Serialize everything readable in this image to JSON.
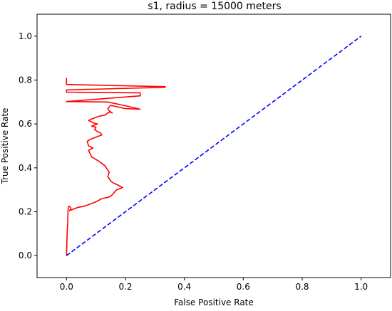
{
  "chart_data": {
    "type": "line",
    "title": "s1, radius = 15000 meters",
    "xlabel": "False Positive Rate",
    "ylabel": "True Positive Rate",
    "xlim": [
      -0.1,
      1.1
    ],
    "ylim": [
      -0.1,
      1.1
    ],
    "xticks": [
      0.0,
      0.2,
      0.4,
      0.6,
      0.8,
      1.0
    ],
    "yticks": [
      0.0,
      0.2,
      0.4,
      0.6,
      0.8,
      1.0
    ],
    "xtick_labels": [
      "0.0",
      "0.2",
      "0.4",
      "0.6",
      "0.8",
      "1.0"
    ],
    "ytick_labels": [
      "0.0",
      "0.2",
      "0.4",
      "0.6",
      "0.8",
      "1.0"
    ],
    "grid": false,
    "series": [
      {
        "color": "#ff0000",
        "style": "solid",
        "x": [
          0.0,
          0.002,
          0.004,
          0.005,
          0.006,
          0.01,
          0.015,
          0.01,
          0.02,
          0.04,
          0.06,
          0.08,
          0.1,
          0.12,
          0.14,
          0.15,
          0.16,
          0.17,
          0.19,
          0.17,
          0.16,
          0.15,
          0.14,
          0.145,
          0.14,
          0.13,
          0.12,
          0.11,
          0.085,
          0.075,
          0.09,
          0.075,
          0.07,
          0.08,
          0.09,
          0.1,
          0.11,
          0.12,
          0.115,
          0.105,
          0.095,
          0.1,
          0.085,
          0.105,
          0.09,
          0.085,
          0.075,
          0.08,
          0.09,
          0.1,
          0.11,
          0.13,
          0.14,
          0.15,
          0.155,
          0.145,
          0.14,
          0.15,
          0.2,
          0.25,
          0.21,
          0.14,
          0.0,
          0.25,
          0.25,
          0.0,
          0.0,
          0.335,
          0.335,
          0.0,
          0.0
        ],
        "y": [
          0.0,
          0.1,
          0.15,
          0.2,
          0.222,
          0.225,
          0.215,
          0.205,
          0.21,
          0.22,
          0.225,
          0.235,
          0.245,
          0.26,
          0.265,
          0.27,
          0.285,
          0.3,
          0.31,
          0.325,
          0.33,
          0.34,
          0.36,
          0.38,
          0.39,
          0.41,
          0.42,
          0.43,
          0.45,
          0.48,
          0.49,
          0.5,
          0.52,
          0.53,
          0.535,
          0.54,
          0.545,
          0.55,
          0.56,
          0.565,
          0.575,
          0.585,
          0.59,
          0.6,
          0.605,
          0.61,
          0.615,
          0.62,
          0.625,
          0.63,
          0.635,
          0.64,
          0.65,
          0.655,
          0.65,
          0.66,
          0.67,
          0.685,
          0.67,
          0.667,
          0.68,
          0.7,
          0.702,
          0.728,
          0.742,
          0.745,
          0.755,
          0.767,
          0.77,
          0.78,
          0.81
        ]
      },
      {
        "color": "#0000ff",
        "style": "dashed",
        "x": [
          0.0,
          1.0
        ],
        "y": [
          0.0,
          1.0
        ]
      }
    ]
  }
}
